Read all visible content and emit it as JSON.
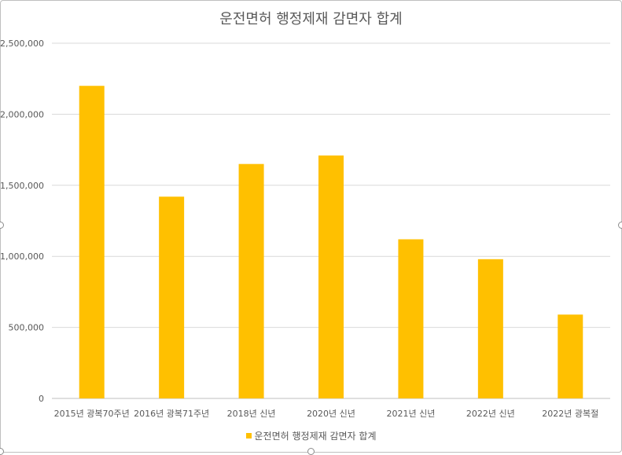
{
  "chart_data": {
    "type": "bar",
    "title": "운전면허 행정제재 감면자 합계",
    "categories": [
      "2015년 광복70주년",
      "2016년 광복71주년",
      "2018년 신년",
      "2020년 신년",
      "2021년 신년",
      "2022년 신년",
      "2022년 광복절"
    ],
    "series": [
      {
        "name": "운전면허 행정제재 감면자 합계",
        "values": [
          2200000,
          1420000,
          1650000,
          1710000,
          1120000,
          980000,
          590000
        ]
      }
    ],
    "ylim": [
      0,
      2500000
    ],
    "yticks": [
      "0",
      "500,000",
      "1,000,000",
      "1,500,000",
      "2,000,000",
      "2,500,000"
    ],
    "xlabel": "",
    "ylabel": "",
    "grid": true,
    "legend_position": "bottom",
    "color": "#FFC000"
  }
}
